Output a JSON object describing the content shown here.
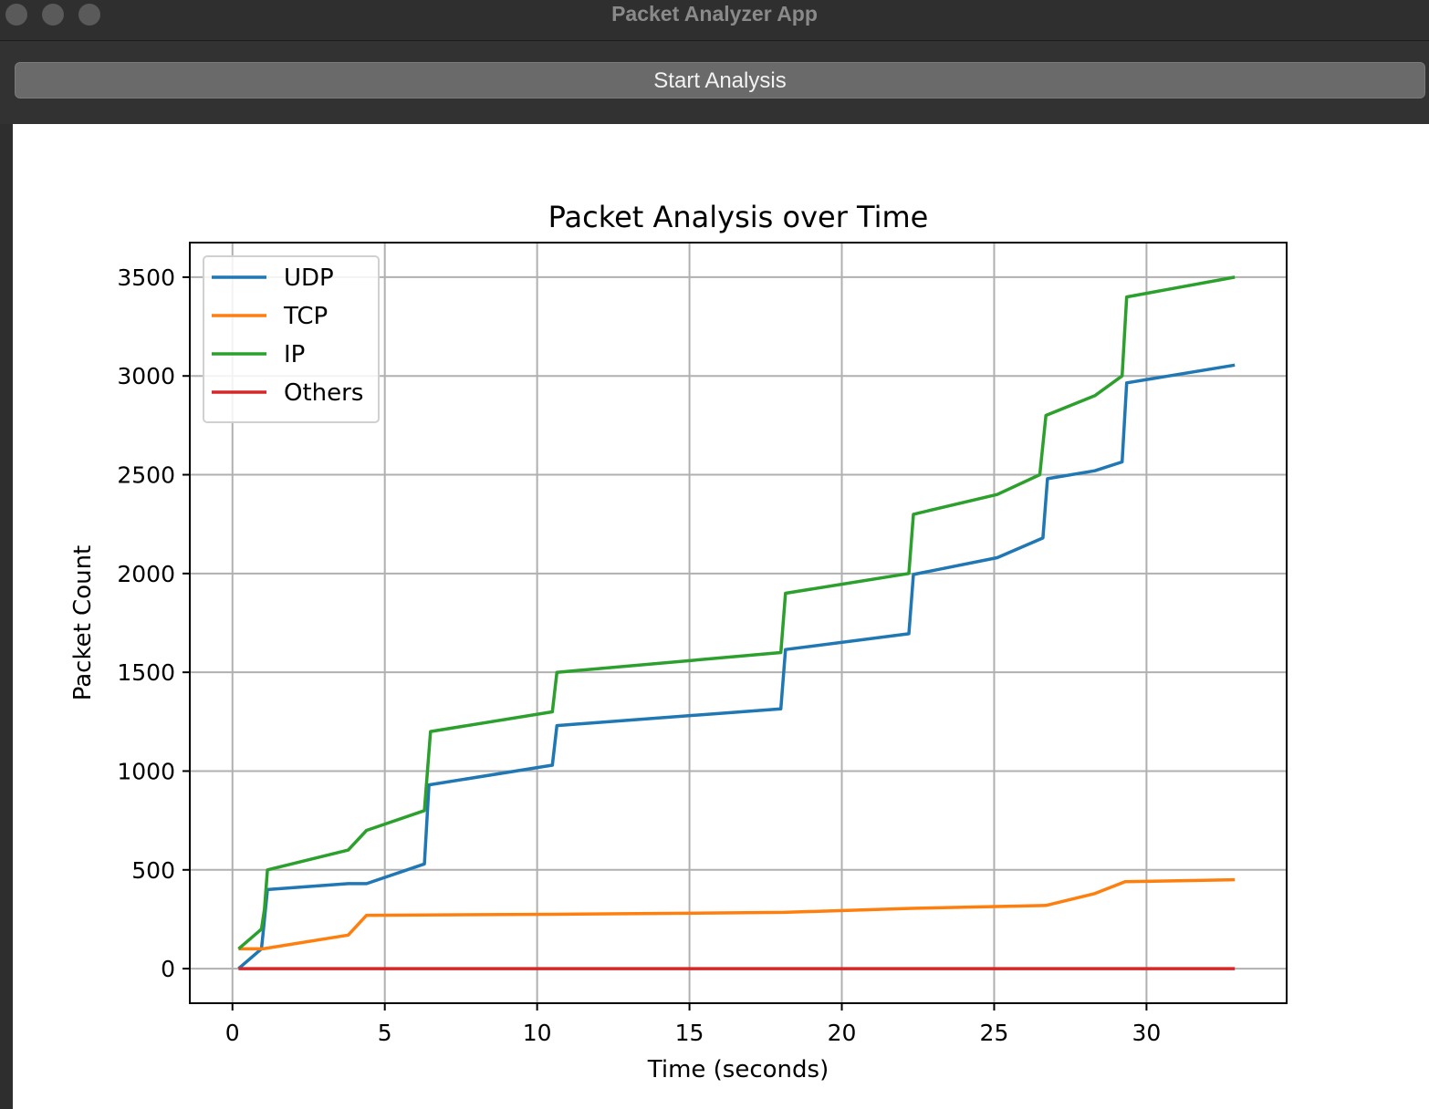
{
  "window": {
    "title": "Packet Analyzer App"
  },
  "toolbar": {
    "start_label": "Start Analysis"
  },
  "chart_data": {
    "type": "line",
    "title": "Packet Analysis over Time",
    "xlabel": "Time (seconds)",
    "ylabel": "Packet Count",
    "xlim": [
      -1.4,
      34.6
    ],
    "ylim": [
      -175,
      3675
    ],
    "xticks": [
      0,
      5,
      10,
      15,
      20,
      25,
      30
    ],
    "yticks": [
      0,
      500,
      1000,
      1500,
      2000,
      2500,
      3000,
      3500
    ],
    "grid": true,
    "legend_position": "upper-left",
    "series": [
      {
        "name": "UDP",
        "color": "#1f77b4",
        "points": [
          [
            0.2,
            0
          ],
          [
            0.95,
            100
          ],
          [
            1.0,
            170
          ],
          [
            1.05,
            250
          ],
          [
            1.15,
            400
          ],
          [
            3.8,
            430
          ],
          [
            4.4,
            430
          ],
          [
            6.3,
            530
          ],
          [
            6.45,
            930
          ],
          [
            10.5,
            1030
          ],
          [
            10.65,
            1230
          ],
          [
            18.0,
            1315
          ],
          [
            18.15,
            1615
          ],
          [
            22.2,
            1695
          ],
          [
            22.35,
            1995
          ],
          [
            25.1,
            2080
          ],
          [
            26.6,
            2180
          ],
          [
            26.75,
            2480
          ],
          [
            28.3,
            2520
          ],
          [
            29.2,
            2565
          ],
          [
            29.35,
            2965
          ],
          [
            32.9,
            3055
          ]
        ]
      },
      {
        "name": "TCP",
        "color": "#ff7f0e",
        "points": [
          [
            0.2,
            100
          ],
          [
            1.0,
            100
          ],
          [
            3.8,
            170
          ],
          [
            4.4,
            270
          ],
          [
            10.6,
            275
          ],
          [
            18.1,
            285
          ],
          [
            22.3,
            305
          ],
          [
            26.7,
            320
          ],
          [
            28.3,
            380
          ],
          [
            29.3,
            440
          ],
          [
            32.9,
            450
          ]
        ]
      },
      {
        "name": "IP",
        "color": "#2ca02c",
        "points": [
          [
            0.2,
            100
          ],
          [
            0.95,
            200
          ],
          [
            1.05,
            300
          ],
          [
            1.15,
            500
          ],
          [
            3.8,
            600
          ],
          [
            4.4,
            700
          ],
          [
            6.3,
            800
          ],
          [
            6.5,
            1200
          ],
          [
            10.5,
            1300
          ],
          [
            10.65,
            1500
          ],
          [
            18.0,
            1600
          ],
          [
            18.15,
            1900
          ],
          [
            22.2,
            2000
          ],
          [
            22.35,
            2300
          ],
          [
            25.1,
            2400
          ],
          [
            26.5,
            2500
          ],
          [
            26.7,
            2800
          ],
          [
            28.3,
            2900
          ],
          [
            29.2,
            3000
          ],
          [
            29.35,
            3400
          ],
          [
            32.9,
            3500
          ]
        ]
      },
      {
        "name": "Others",
        "color": "#d62728",
        "points": [
          [
            0.2,
            0
          ],
          [
            32.9,
            0
          ]
        ]
      }
    ]
  }
}
